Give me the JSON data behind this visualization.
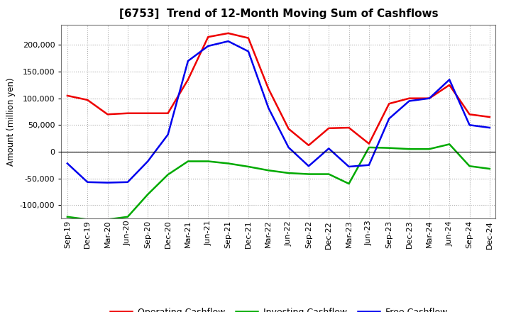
{
  "title": "[6753]  Trend of 12-Month Moving Sum of Cashflows",
  "ylabel": "Amount (million yen)",
  "ylim": [
    -125000,
    237500
  ],
  "yticks": [
    -100000,
    -50000,
    0,
    50000,
    100000,
    150000,
    200000
  ],
  "labels": [
    "Sep-19",
    "Dec-19",
    "Mar-20",
    "Jun-20",
    "Sep-20",
    "Dec-20",
    "Mar-21",
    "Jun-21",
    "Sep-21",
    "Dec-21",
    "Mar-22",
    "Jun-22",
    "Sep-22",
    "Dec-22",
    "Mar-23",
    "Jun-23",
    "Sep-23",
    "Dec-23",
    "Mar-24",
    "Jun-24",
    "Sep-24",
    "Dec-24"
  ],
  "operating": [
    105000,
    97000,
    70000,
    72000,
    72000,
    72000,
    135000,
    215000,
    222000,
    213000,
    118000,
    43000,
    12000,
    44000,
    45000,
    15000,
    90000,
    100000,
    100000,
    125000,
    70000,
    65000
  ],
  "investing": [
    -122000,
    -127000,
    -127000,
    -122000,
    -80000,
    -43000,
    -18000,
    -18000,
    -22000,
    -28000,
    -35000,
    -40000,
    -42000,
    -42000,
    -60000,
    8000,
    7000,
    5000,
    5000,
    14000,
    -27000,
    -32000
  ],
  "free": [
    -22000,
    -57000,
    -58000,
    -57000,
    -18000,
    32000,
    170000,
    198000,
    207000,
    188000,
    82000,
    8000,
    -27000,
    6000,
    -28000,
    -25000,
    62000,
    95000,
    100000,
    135000,
    50000,
    45000
  ],
  "operating_color": "#EE0000",
  "investing_color": "#00AA00",
  "free_color": "#0000EE",
  "background_color": "#FFFFFF",
  "grid_color": "#AAAAAA",
  "title_fontsize": 11,
  "axis_label_fontsize": 8.5,
  "tick_fontsize": 8,
  "legend_fontsize": 9,
  "legend_labels": [
    "Operating Cashflow",
    "Investing Cashflow",
    "Free Cashflow"
  ]
}
